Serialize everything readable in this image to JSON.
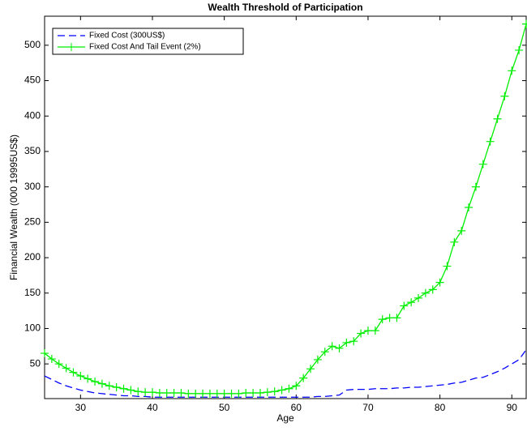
{
  "chart_data": {
    "type": "line",
    "title": "Wealth Threshold of Participation",
    "xlabel": "Age",
    "ylabel": "Financial Wealth (000 19995US$)",
    "x": [
      25,
      26,
      27,
      28,
      29,
      30,
      31,
      32,
      33,
      34,
      35,
      36,
      37,
      38,
      39,
      40,
      41,
      42,
      43,
      44,
      45,
      46,
      47,
      48,
      49,
      50,
      51,
      52,
      53,
      54,
      55,
      56,
      57,
      58,
      59,
      60,
      61,
      62,
      63,
      64,
      65,
      66,
      67,
      68,
      69,
      70,
      71,
      72,
      73,
      74,
      75,
      76,
      77,
      78,
      79,
      80,
      81,
      82,
      83,
      84,
      85,
      86,
      87,
      88,
      89,
      90,
      91,
      92
    ],
    "series": [
      {
        "name": "Fixed Cost (300US$)",
        "color": "#0000ff",
        "dash": true,
        "marker": false,
        "values": [
          33,
          28,
          23,
          19,
          16,
          13,
          11,
          9,
          8,
          7,
          6,
          5,
          5,
          4,
          4,
          3,
          3,
          3,
          3,
          3,
          3,
          3,
          3,
          3,
          3,
          3,
          3,
          3,
          3,
          3,
          3,
          3,
          3,
          3,
          3,
          3,
          3,
          3,
          4,
          4,
          5,
          6,
          13,
          14,
          14,
          14,
          15,
          15,
          15,
          16,
          16,
          17,
          17,
          18,
          19,
          20,
          21,
          23,
          24,
          27,
          30,
          31,
          35,
          39,
          44,
          50,
          56,
          70
        ]
      },
      {
        "name": "Fixed Cost And Tail Event (2%)",
        "color": "#00ee00",
        "dash": false,
        "marker": true,
        "values": [
          65,
          57,
          50,
          44,
          38,
          33,
          29,
          25,
          22,
          19,
          17,
          15,
          13,
          11,
          10,
          10,
          9,
          9,
          9,
          9,
          8,
          8,
          8,
          8,
          8,
          8,
          8,
          8,
          9,
          9,
          9,
          10,
          11,
          13,
          15,
          19,
          30,
          43,
          56,
          67,
          75,
          72,
          80,
          82,
          93,
          97,
          97,
          113,
          115,
          115,
          132,
          137,
          143,
          150,
          155,
          165,
          188,
          222,
          238,
          271,
          300,
          332,
          364,
          396,
          428,
          464,
          493,
          530
        ]
      }
    ],
    "xlim": [
      25,
      92
    ],
    "xticks": [
      30,
      40,
      50,
      60,
      70,
      80,
      90
    ],
    "ylim": [
      1,
      541
    ],
    "yticks": [
      50,
      100,
      150,
      200,
      250,
      300,
      350,
      400,
      450,
      500
    ],
    "legend": "upper-left"
  }
}
